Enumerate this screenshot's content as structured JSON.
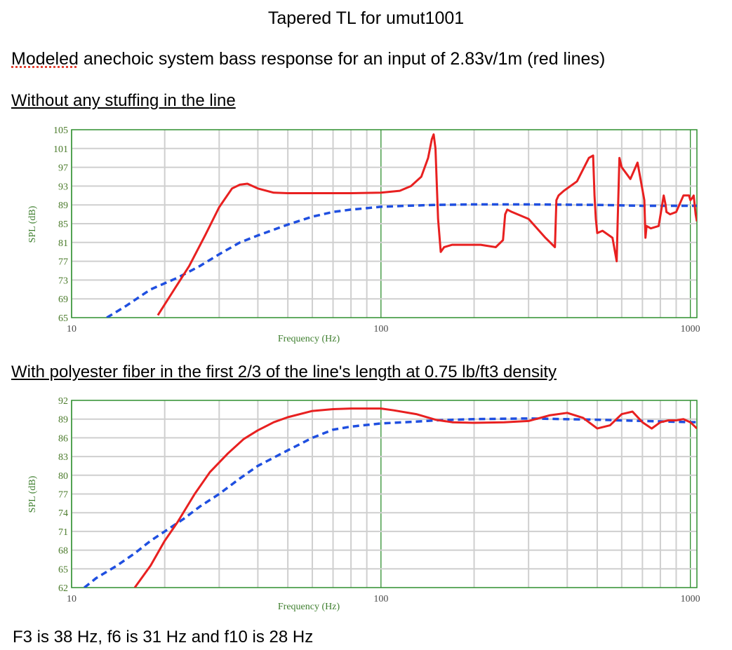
{
  "page": {
    "title": "Tapered TL for umut1001",
    "subtitle_word": "Modeled",
    "subtitle_rest": " anechoic system bass response for an input of 2.83v/1m (red lines)",
    "section1": "Without any stuffing in the line",
    "section2": "With polyester fiber in the first 2/3 of the line's length at 0.75 lb/ft3 density",
    "footer": "F3 is 38 Hz, f6 is 31 Hz and f10 is 28 Hz"
  },
  "colors": {
    "red": "#e82020",
    "blue": "#1f4fe0",
    "grid_major": "#2f8f2f",
    "grid_minor": "#cfcfcf"
  },
  "chart_data": [
    {
      "type": "line",
      "title": "",
      "xlabel": "Frequency (Hz)",
      "ylabel": "SPL (dB)",
      "x_scale": "log",
      "xlim": [
        10,
        1050
      ],
      "ylim": [
        65,
        105
      ],
      "x_ticks": [
        "10",
        "100",
        "1000"
      ],
      "y_ticks": [
        "105",
        "101",
        "97",
        "93",
        "89",
        "85",
        "81",
        "77",
        "73",
        "69",
        "65"
      ],
      "grid": true,
      "series": [
        {
          "color": "red",
          "style": "solid",
          "x": [
            19,
            21,
            24,
            27,
            30,
            33,
            35,
            37,
            40,
            45,
            50,
            60,
            70,
            80,
            100,
            115,
            125,
            135,
            142,
            146,
            148,
            150,
            153,
            156,
            160,
            170,
            190,
            210,
            235,
            248,
            252,
            256,
            265,
            300,
            340,
            365,
            369,
            375,
            390,
            430,
            470,
            485,
            490,
            495,
            500,
            520,
            560,
            578,
            582,
            590,
            600,
            640,
            675,
            710,
            716,
            722,
            745,
            790,
            820,
            832,
            837,
            860,
            900,
            950,
            990,
            1000,
            1015,
            1025,
            1040,
            1050
          ],
          "y": [
            65.5,
            70,
            76,
            82.5,
            88.5,
            92.5,
            93.3,
            93.5,
            92.5,
            91.6,
            91.5,
            91.5,
            91.5,
            91.5,
            91.6,
            92,
            93,
            95,
            99,
            103,
            104,
            101,
            86,
            79,
            80,
            80.5,
            80.5,
            80.5,
            80,
            81.5,
            87,
            88,
            87.5,
            86,
            82,
            80,
            90,
            91,
            92,
            94,
            99,
            99.5,
            91,
            86,
            83,
            83.5,
            82,
            77,
            85,
            99,
            97,
            94.5,
            98,
            90,
            82,
            84.5,
            84,
            84.5,
            91,
            89,
            87.5,
            87,
            87.5,
            91,
            91,
            90,
            90.5,
            91,
            87,
            85.5
          ]
        },
        {
          "color": "blue",
          "style": "dashed",
          "x": [
            13,
            15,
            18,
            22,
            26,
            30,
            35,
            40,
            50,
            60,
            70,
            80,
            90,
            100,
            120,
            150,
            200,
            300,
            500,
            700,
            1050
          ],
          "y": [
            65,
            67.5,
            71,
            73.5,
            76,
            78.5,
            81,
            82.5,
            84.8,
            86.5,
            87.5,
            88,
            88.3,
            88.6,
            88.8,
            89,
            89.1,
            89.1,
            89,
            88.8,
            88.8
          ]
        }
      ]
    },
    {
      "type": "line",
      "title": "",
      "xlabel": "Frequency (Hz)",
      "ylabel": "SPL (dB)",
      "x_scale": "log",
      "xlim": [
        10,
        1050
      ],
      "ylim": [
        62,
        92
      ],
      "x_ticks": [
        "10",
        "100",
        "1000"
      ],
      "y_ticks": [
        "92",
        "89",
        "86",
        "83",
        "80",
        "77",
        "74",
        "71",
        "68",
        "65",
        "62"
      ],
      "grid": true,
      "series": [
        {
          "color": "red",
          "style": "solid",
          "x": [
            16,
            18,
            20,
            22,
            25,
            28,
            32,
            36,
            40,
            45,
            50,
            60,
            70,
            80,
            90,
            100,
            110,
            130,
            150,
            170,
            200,
            250,
            300,
            350,
            400,
            450,
            500,
            550,
            600,
            650,
            700,
            750,
            800,
            850,
            900,
            950,
            1000,
            1050
          ],
          "y": [
            62,
            65.5,
            69.5,
            72.5,
            77,
            80.5,
            83.5,
            85.8,
            87.2,
            88.5,
            89.3,
            90.3,
            90.6,
            90.7,
            90.7,
            90.7,
            90.4,
            89.8,
            88.9,
            88.5,
            88.4,
            88.5,
            88.7,
            89.6,
            90,
            89.2,
            87.5,
            88,
            89.8,
            90.2,
            88.5,
            87.5,
            88.5,
            88.8,
            88.8,
            89,
            88.5,
            87.5
          ]
        },
        {
          "color": "blue",
          "style": "dashed",
          "x": [
            11,
            12,
            14,
            16,
            18,
            20,
            23,
            26,
            30,
            35,
            40,
            50,
            60,
            70,
            80,
            100,
            130,
            150,
            200,
            300,
            500,
            700,
            1050
          ],
          "y": [
            62,
            63.5,
            65.5,
            67.5,
            69.5,
            71,
            73,
            75,
            77,
            79.5,
            81.5,
            84,
            86,
            87.3,
            87.8,
            88.3,
            88.6,
            88.8,
            89,
            89.1,
            88.9,
            88.7,
            88.5
          ]
        }
      ]
    }
  ]
}
